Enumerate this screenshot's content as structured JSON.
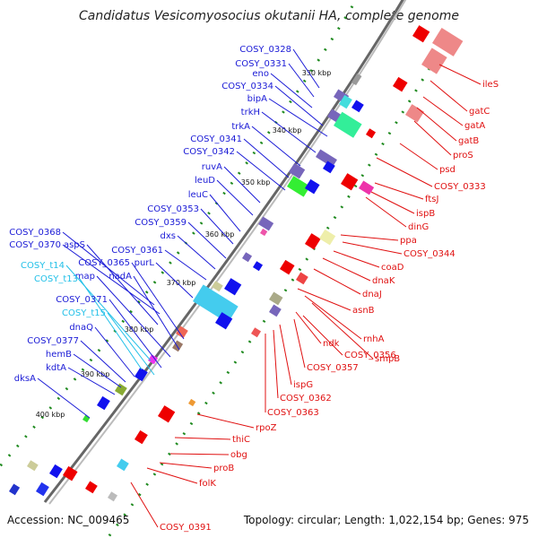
{
  "title": "Candidatus Vesicomyosocius okutanii HA, complete genome",
  "accession": "Accession: NC_009465",
  "topology": "Topology: circular; Length: 1,022,154 bp; Genes: 975",
  "ruler": [
    "330 kbp",
    "340 kbp",
    "350 kbp",
    "360 kbp",
    "370 kbp",
    "380 kbp",
    "390 kbp",
    "400 kbp"
  ],
  "colors": {
    "forward_label": "#1a1ad6",
    "rna_label": "#22c0e8",
    "reverse_label": "#e01010",
    "backbone": "#777777",
    "tick": "#1f8a1f"
  },
  "labels_left": [
    {
      "text": "COSY_0328",
      "kind": "gene"
    },
    {
      "text": "COSY_0331",
      "kind": "gene"
    },
    {
      "text": "eno",
      "kind": "gene"
    },
    {
      "text": "COSY_0334",
      "kind": "gene"
    },
    {
      "text": "bipA",
      "kind": "gene"
    },
    {
      "text": "trkH",
      "kind": "gene"
    },
    {
      "text": "trkA",
      "kind": "gene"
    },
    {
      "text": "COSY_0341",
      "kind": "gene"
    },
    {
      "text": "COSY_0342",
      "kind": "gene"
    },
    {
      "text": "ruvA",
      "kind": "gene"
    },
    {
      "text": "leuD",
      "kind": "gene"
    },
    {
      "text": "leuC",
      "kind": "gene"
    },
    {
      "text": "COSY_0353",
      "kind": "gene"
    },
    {
      "text": "COSY_0359",
      "kind": "gene"
    },
    {
      "text": "dxs",
      "kind": "gene"
    },
    {
      "text": "COSY_0368",
      "kind": "gene"
    },
    {
      "text": "COSY_0370",
      "kind": "gene"
    },
    {
      "text": "aspS",
      "kind": "gene"
    },
    {
      "text": "COSY_0361",
      "kind": "gene"
    },
    {
      "text": "COSY_0365",
      "kind": "gene"
    },
    {
      "text": "purL",
      "kind": "gene"
    },
    {
      "text": "nadA",
      "kind": "gene"
    },
    {
      "text": "map",
      "kind": "gene"
    },
    {
      "text": "COSY_t14",
      "kind": "rna"
    },
    {
      "text": "COSY_t13",
      "kind": "rna"
    },
    {
      "text": "COSY_0371",
      "kind": "gene"
    },
    {
      "text": "COSY_t15",
      "kind": "rna"
    },
    {
      "text": "dnaQ",
      "kind": "gene"
    },
    {
      "text": "COSY_0377",
      "kind": "gene"
    },
    {
      "text": "hemB",
      "kind": "gene"
    },
    {
      "text": "kdtA",
      "kind": "gene"
    },
    {
      "text": "dksA",
      "kind": "gene"
    }
  ],
  "labels_right": [
    "ileS",
    "gatC",
    "gatA",
    "gatB",
    "proS",
    "psd",
    "COSY_0333",
    "ftsJ",
    "ispB",
    "dinG",
    "ppa",
    "COSY_0344",
    "coaD",
    "dnaK",
    "dnaJ",
    "asnB",
    "rnhA",
    "smpB",
    "ndk",
    "COSY_0356",
    "COSY_0357",
    "ispG",
    "COSY_0362",
    "COSY_0363",
    "rpoZ",
    "thiC",
    "obg",
    "proB",
    "folK",
    "COSY_0391"
  ]
}
